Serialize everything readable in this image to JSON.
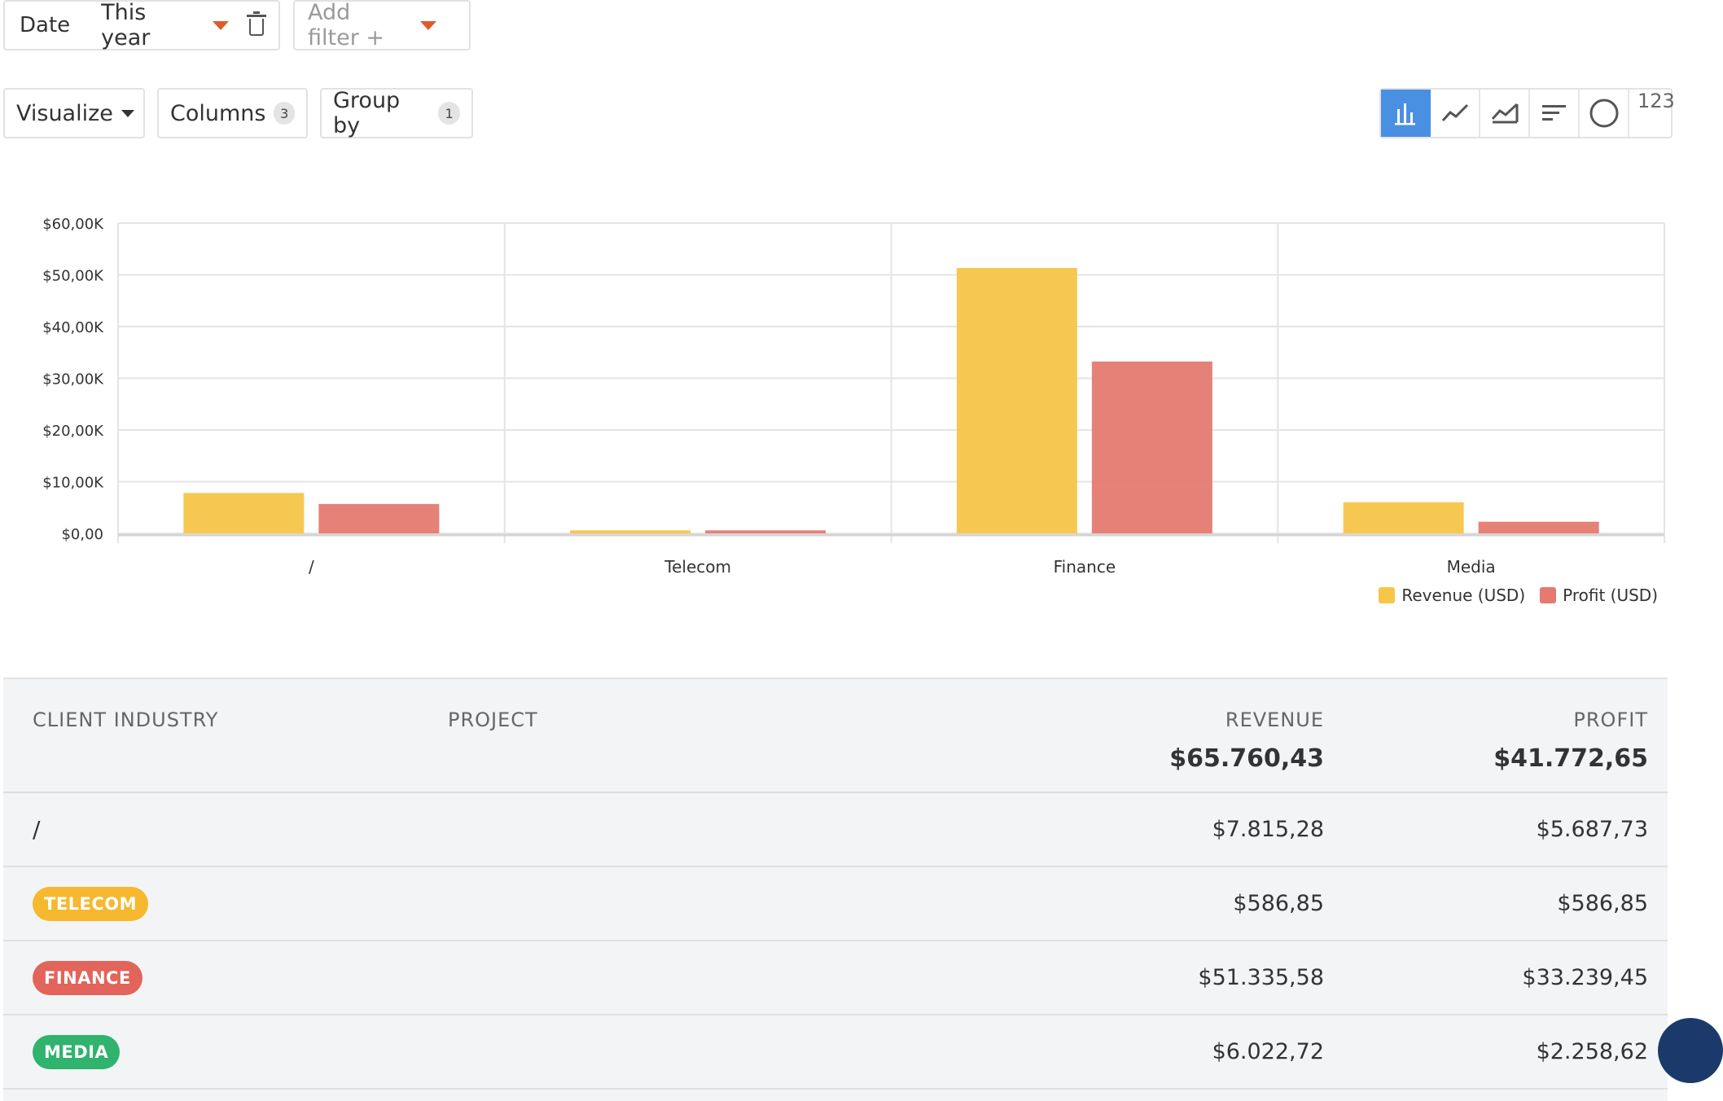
{
  "filters": {
    "date_label": "Date",
    "date_value": "This year",
    "add_filter": "Add filter +"
  },
  "toolbar": {
    "visualize": "Visualize",
    "columns": "Columns",
    "columns_count": "3",
    "group_by": "Group by",
    "group_by_count": "1",
    "vis_types": [
      "bar-chart-icon",
      "line-chart-icon",
      "area-chart-icon",
      "horizontal-bar-icon",
      "pie-chart-icon"
    ],
    "vis_number_label": "123",
    "active_vis": "bar-chart-icon"
  },
  "chart_data": {
    "type": "bar",
    "categories": [
      "/",
      "Telecom",
      "Finance",
      "Media"
    ],
    "series": [
      {
        "name": "Revenue (USD)",
        "color": "#f7c548",
        "values": [
          7815.28,
          586.85,
          51335.58,
          6022.72
        ]
      },
      {
        "name": "Profit (USD)",
        "color": "#e57a70",
        "values": [
          5687.73,
          586.85,
          33239.45,
          2258.62
        ]
      }
    ],
    "ylim": [
      0,
      60000
    ],
    "yticks": [
      0,
      10000,
      20000,
      30000,
      40000,
      50000,
      60000
    ],
    "ytick_labels": [
      "$0,00",
      "$10,00K",
      "$20,00K",
      "$30,00K",
      "$40,00K",
      "$50,00K",
      "$60,00K"
    ],
    "grid": true,
    "legend": "bottom-right"
  },
  "table": {
    "headers": {
      "industry": "CLIENT INDUSTRY",
      "project": "PROJECT",
      "revenue": "REVENUE",
      "profit": "PROFIT"
    },
    "totals": {
      "revenue": "$65.760,43",
      "profit": "$41.772,65"
    },
    "rows": [
      {
        "industry": "/",
        "tag": false,
        "color": "",
        "revenue": "$7.815,28",
        "profit": "$5.687,73"
      },
      {
        "industry": "TELECOM",
        "tag": true,
        "color": "#f5b82e",
        "revenue": "$586,85",
        "profit": "$586,85"
      },
      {
        "industry": "FINANCE",
        "tag": true,
        "color": "#e2645a",
        "revenue": "$51.335,58",
        "profit": "$33.239,45"
      },
      {
        "industry": "MEDIA",
        "tag": true,
        "color": "#2fb36d",
        "revenue": "$6.022,72",
        "profit": "$2.258,62"
      }
    ]
  }
}
